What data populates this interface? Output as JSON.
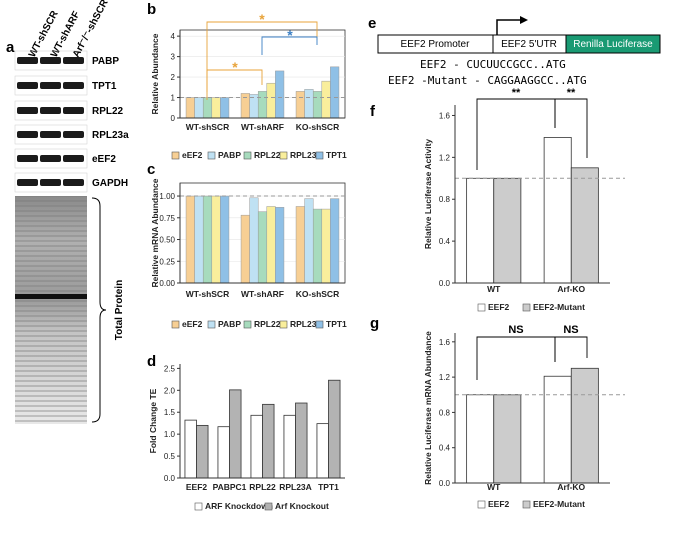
{
  "panel_labels": [
    "a",
    "b",
    "c",
    "d",
    "e",
    "f",
    "g"
  ],
  "blot": {
    "lanes": [
      "WT-shSCR",
      "WT-shARF",
      "Arf⁻/⁻-shSCR"
    ],
    "bands": [
      "PABP",
      "TPT1",
      "RPL22",
      "RPL23a",
      "eEF2",
      "GAPDH"
    ],
    "total_label": "Total Protein"
  },
  "construct": {
    "parts": [
      "EEF2 Promoter",
      "EEF2 5'UTR",
      "Renilla Luciferase"
    ],
    "sequences": [
      "EEF2 - CUCUUCCGCC..ATG",
      "EEF2 -Mutant - CAGGAAGGCC..ATG"
    ]
  },
  "chart_data": [
    {
      "type": "bar",
      "y_label": "Relative Abundance",
      "categories": [
        "WT-shSCR",
        "WT-shARF",
        "KO-shSCR"
      ],
      "series": [
        {
          "name": "eEF2",
          "color": "#f7cf94",
          "values": [
            1,
            1.2,
            1.3
          ]
        },
        {
          "name": "PABP",
          "color": "#bfe1f3",
          "values": [
            1,
            1.15,
            1.4
          ]
        },
        {
          "name": "RPL22",
          "color": "#a7dbbd",
          "values": [
            1,
            1.3,
            1.3
          ]
        },
        {
          "name": "RPL23A",
          "color": "#f9ee9c",
          "values": [
            1,
            1.7,
            1.8
          ]
        },
        {
          "name": "TPT1",
          "color": "#8fc0e6",
          "values": [
            1,
            2.3,
            2.5
          ]
        }
      ],
      "ylim": [
        0,
        4.3
      ],
      "yticks": [
        0,
        1,
        2,
        3,
        4
      ],
      "refline": 1,
      "annotations": [
        "*",
        "*",
        "*"
      ]
    },
    {
      "type": "bar",
      "y_label": "Relative mRNA Abundance",
      "categories": [
        "WT-shSCR",
        "WT-shARF",
        "KO-shSCR"
      ],
      "series": [
        {
          "name": "eEF2",
          "color": "#f7cf94",
          "values": [
            1,
            0.78,
            0.88
          ]
        },
        {
          "name": "PABP",
          "color": "#bfe1f3",
          "values": [
            1,
            0.98,
            0.97
          ]
        },
        {
          "name": "RPL22",
          "color": "#a7dbbd",
          "values": [
            1,
            0.82,
            0.85
          ]
        },
        {
          "name": "RPL23A",
          "color": "#f9ee9c",
          "values": [
            1,
            0.88,
            0.85
          ]
        },
        {
          "name": "TPT1",
          "color": "#8fc0e6",
          "values": [
            1,
            0.87,
            0.97
          ]
        }
      ],
      "ylim": [
        0,
        1.15
      ],
      "yticks": [
        {
          "value": 0,
          "label": "0.00"
        },
        {
          "value": 0.25,
          "label": "0.25"
        },
        {
          "value": 0.5,
          "label": "0.50"
        },
        {
          "value": 0.75,
          "label": "0.75"
        },
        {
          "value": 1,
          "label": "1.00"
        }
      ],
      "refline": 1,
      "annotations": []
    },
    {
      "type": "bar",
      "y_label": "Fold Change TE",
      "categories": [
        "EEF2",
        "PABPC1",
        "RPL22",
        "RPL23A",
        "TPT1"
      ],
      "series": [
        {
          "name": "ARF Knockdown",
          "color": "#ffffff",
          "values": [
            1.32,
            1.17,
            1.43,
            1.43,
            1.24
          ]
        },
        {
          "name": "Arf Knockout",
          "color": "#b3b3b3",
          "values": [
            1.2,
            2.01,
            1.68,
            1.71,
            2.23
          ]
        }
      ],
      "ylim": [
        0,
        2.6
      ],
      "yticks": [
        {
          "value": 0,
          "label": "0.0"
        },
        {
          "value": 0.5,
          "label": "0.5"
        },
        {
          "value": 1,
          "label": "1.0"
        },
        {
          "value": 1.5,
          "label": "1.5"
        },
        {
          "value": 2,
          "label": "2.0"
        },
        {
          "value": 2.5,
          "label": "2.5"
        }
      ],
      "annotations": []
    },
    {
      "type": "bar",
      "y_label": "Relative Luciferase Activity",
      "categories": [
        "WT",
        "Arf-KO"
      ],
      "series": [
        {
          "name": "EEF2",
          "color": "#ffffff",
          "values": [
            1,
            1.39
          ]
        },
        {
          "name": "EEF2-Mutant",
          "color": "#cccccc",
          "values": [
            1,
            1.1
          ]
        }
      ],
      "ylim": [
        0,
        1.7
      ],
      "yticks": [
        {
          "value": 0,
          "label": "0.0"
        },
        {
          "value": 0.4,
          "label": "0.4"
        },
        {
          "value": 0.8,
          "label": "0.8"
        },
        {
          "value": 1.2,
          "label": "1.2"
        },
        {
          "value": 1.6,
          "label": "1.6"
        }
      ],
      "refline": 1,
      "annotations": [
        "**",
        "**"
      ]
    },
    {
      "type": "bar",
      "y_label": "Relative Luciferase mRNA Abundance",
      "categories": [
        "WT",
        "Arf-KO"
      ],
      "series": [
        {
          "name": "EEF2",
          "color": "#ffffff",
          "values": [
            1,
            1.21
          ]
        },
        {
          "name": "EEF2-Mutant",
          "color": "#cccccc",
          "values": [
            1,
            1.3
          ]
        }
      ],
      "ylim": [
        0,
        1.7
      ],
      "yticks": [
        {
          "value": 0,
          "label": "0.0"
        },
        {
          "value": 0.4,
          "label": "0.4"
        },
        {
          "value": 0.8,
          "label": "0.8"
        },
        {
          "value": 1.2,
          "label": "1.2"
        },
        {
          "value": 1.6,
          "label": "1.6"
        }
      ],
      "refline": 1,
      "annotations": [
        "NS",
        "NS"
      ]
    }
  ]
}
